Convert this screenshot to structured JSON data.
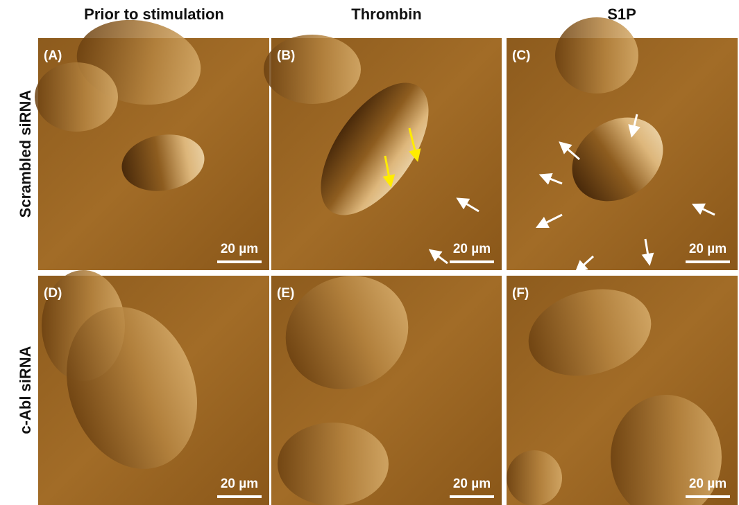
{
  "column_headers": [
    "Prior to stimulation",
    "Thrombin",
    "S1P"
  ],
  "row_labels": [
    "Scrambled siRNA",
    "c-Abl siRNA"
  ],
  "panels": [
    {
      "label": "(A)",
      "scale_bar": "20 µm"
    },
    {
      "label": "(B)",
      "scale_bar": "20 µm"
    },
    {
      "label": "(C)",
      "scale_bar": "20 µm"
    },
    {
      "label": "(D)",
      "scale_bar": "20 µm"
    },
    {
      "label": "(E)",
      "scale_bar": "20 µm"
    },
    {
      "label": "(F)",
      "scale_bar": "20 µm"
    }
  ]
}
